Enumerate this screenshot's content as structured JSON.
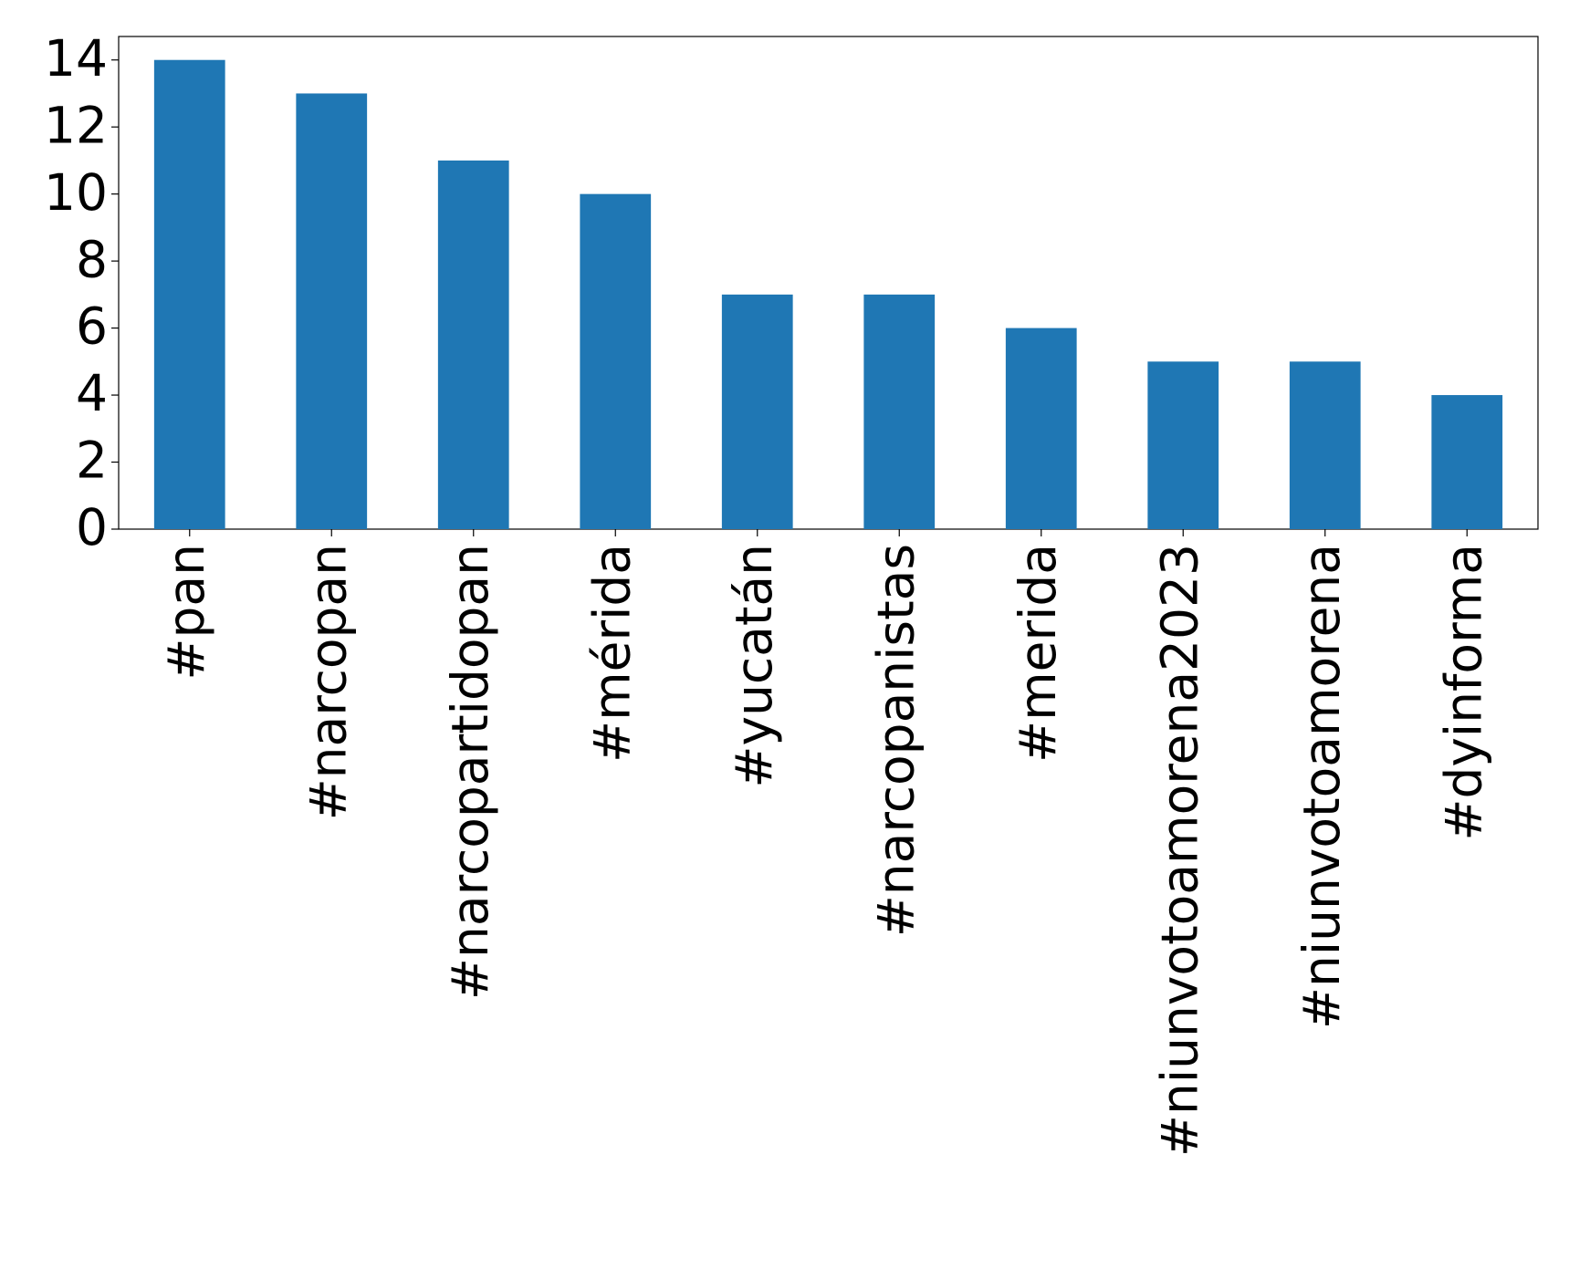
{
  "chart_data": {
    "type": "bar",
    "categories": [
      "#pan",
      "#narcopan",
      "#narcopartidopan",
      "#mérida",
      "#yucatán",
      "#narcopanistas",
      "#merida",
      "#niunvotoamorena2023",
      "#niunvotoamorena",
      "#dyinforma"
    ],
    "values": [
      14,
      13,
      11,
      10,
      7,
      7,
      6,
      5,
      5,
      4
    ],
    "color": "#1f77b4",
    "ylim": [
      0,
      14.7
    ],
    "yticks": [
      0,
      2,
      4,
      6,
      8,
      10,
      12,
      14
    ],
    "grid": false
  }
}
